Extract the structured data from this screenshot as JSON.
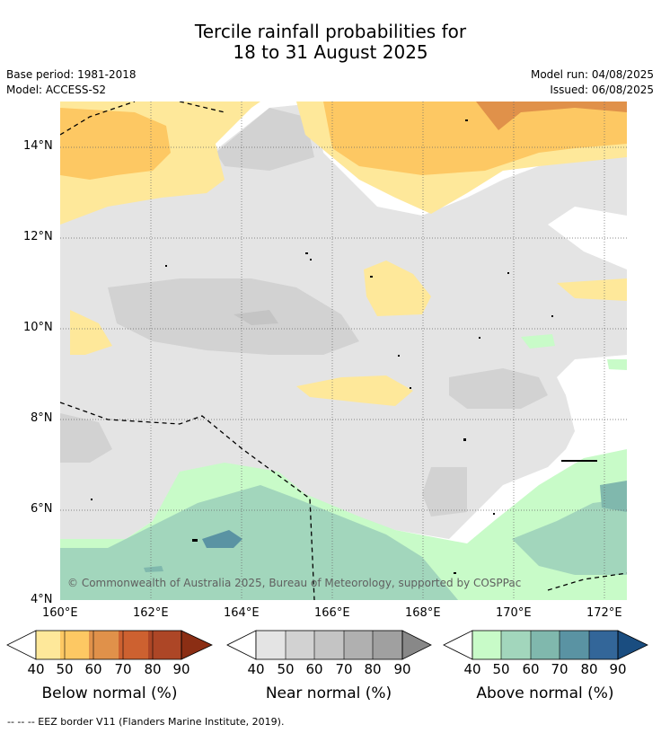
{
  "header": {
    "title_line1": "Tercile rainfall probabilities for",
    "title_line2": "18 to 31 August 2025",
    "base_period": "Base period: 1981-2018",
    "model": "Model: ACCESS-S2",
    "model_run": "Model run: 04/08/2025",
    "issued": "Issued: 06/08/2025"
  },
  "map": {
    "lat_labels": [
      "14°N",
      "12°N",
      "10°N",
      "8°N",
      "6°N",
      "4°N"
    ],
    "lon_labels": [
      "160°E",
      "162°E",
      "164°E",
      "166°E",
      "168°E",
      "170°E",
      "172°E"
    ],
    "copyright": "© Commonwealth of Australia 2025, Bureau of Meteorology, supported by COSPPac"
  },
  "legend": {
    "ticks": [
      "40",
      "50",
      "60",
      "70",
      "80",
      "90"
    ],
    "below": {
      "label": "Below normal (%)",
      "colors": [
        "#fee89a",
        "#fdc863",
        "#e0914a",
        "#cd6130",
        "#ad4626",
        "#8b2e14"
      ]
    },
    "near": {
      "label": "Near normal (%)",
      "colors": [
        "#e4e4e4",
        "#d2d2d2",
        "#c4c4c4",
        "#b0b0b0",
        "#a0a0a0",
        "#888888"
      ]
    },
    "above": {
      "label": "Above normal (%)",
      "colors": [
        "#c8fbc8",
        "#a2d6bc",
        "#80b8ad",
        "#5a93a3",
        "#336699",
        "#1a4d80"
      ]
    }
  },
  "footnote": "-- -- -- EEZ border V11 (Flanders Marine Institute, 2019)."
}
